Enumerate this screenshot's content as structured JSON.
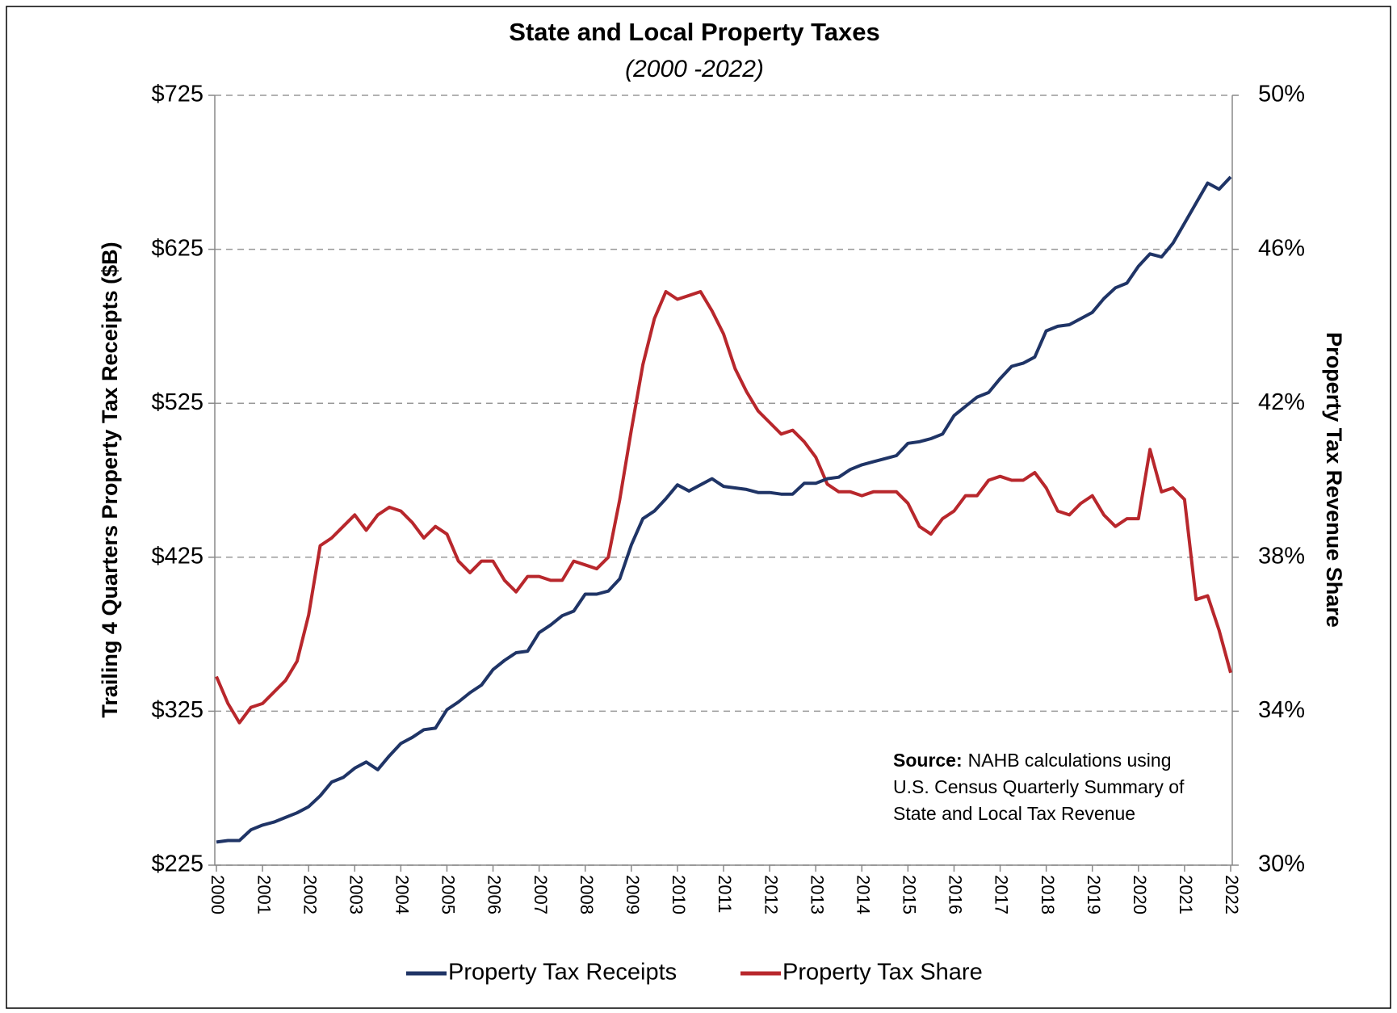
{
  "chart_data": {
    "type": "line",
    "title": "State and Local Property Taxes",
    "subtitle": "(2000 -2022)",
    "y_label": "Trailing 4 Quarters Property Tax Receipts ($B)",
    "y2_label": "Property Tax Revenue Share",
    "categories": [
      "2000",
      null,
      null,
      null,
      "2001",
      null,
      null,
      null,
      "2002",
      null,
      null,
      null,
      "2003",
      null,
      null,
      null,
      "2004",
      null,
      null,
      null,
      "2005",
      null,
      null,
      null,
      "2006",
      null,
      null,
      null,
      "2007",
      null,
      null,
      null,
      "2008",
      null,
      null,
      null,
      "2009",
      null,
      null,
      null,
      "2010",
      null,
      null,
      null,
      "2011",
      null,
      null,
      null,
      "2012",
      null,
      null,
      null,
      "2013",
      null,
      null,
      null,
      "2014",
      null,
      null,
      null,
      "2015",
      null,
      null,
      null,
      "2016",
      null,
      null,
      null,
      "2017",
      null,
      null,
      null,
      "2018",
      null,
      null,
      null,
      "2019",
      null,
      null,
      null,
      "2020",
      null,
      null,
      null,
      "2021",
      null,
      null,
      null,
      "2022"
    ],
    "series": [
      {
        "name": "Property Tax Receipts",
        "color": "#1f3466",
        "axis": "y",
        "values": [
          240,
          241,
          241,
          248,
          251,
          253,
          256,
          259,
          263,
          270,
          279,
          282,
          288,
          292,
          287,
          296,
          304,
          308,
          313,
          314,
          326,
          331,
          337,
          342,
          352,
          358,
          363,
          364,
          376,
          381,
          387,
          390,
          401,
          401,
          403,
          411,
          433,
          450,
          455,
          463,
          472,
          468,
          472,
          476,
          471,
          470,
          469,
          467,
          467,
          466,
          466,
          473,
          473,
          476,
          477,
          482,
          485,
          487,
          489,
          491,
          499,
          500,
          502,
          505,
          517,
          523,
          529,
          532,
          541,
          549,
          551,
          555,
          572,
          575,
          576,
          580,
          584,
          593,
          600,
          603,
          614,
          622,
          620,
          629,
          642,
          655,
          668,
          664,
          672
        ]
      },
      {
        "name": "Property Tax Share",
        "color": "#b8272c",
        "axis": "y2",
        "values": [
          34.9,
          34.2,
          33.7,
          34.1,
          34.2,
          34.5,
          34.8,
          35.3,
          36.5,
          38.3,
          38.5,
          38.8,
          39.1,
          38.7,
          39.1,
          39.3,
          39.2,
          38.9,
          38.5,
          38.8,
          38.6,
          37.9,
          37.6,
          37.9,
          37.9,
          37.4,
          37.1,
          37.5,
          37.5,
          37.4,
          37.4,
          37.9,
          37.8,
          37.7,
          38.0,
          39.5,
          41.3,
          43.0,
          44.2,
          44.9,
          44.7,
          44.8,
          44.9,
          44.4,
          43.8,
          42.9,
          42.3,
          41.8,
          41.5,
          41.2,
          41.3,
          41.0,
          40.6,
          39.9,
          39.7,
          39.7,
          39.6,
          39.7,
          39.7,
          39.7,
          39.4,
          38.8,
          38.6,
          39.0,
          39.2,
          39.6,
          39.6,
          40.0,
          40.1,
          40.0,
          40.0,
          40.2,
          39.8,
          39.2,
          39.1,
          39.4,
          39.6,
          39.1,
          38.8,
          39.0,
          39.0,
          40.8,
          39.7,
          39.8,
          39.5,
          36.9,
          37.0,
          36.1,
          35.0
        ]
      }
    ],
    "ylim": [
      225,
      725
    ],
    "yticks": [
      {
        "value": 225,
        "label": "$225"
      },
      {
        "value": 325,
        "label": "$325"
      },
      {
        "value": 425,
        "label": "$425"
      },
      {
        "value": 525,
        "label": "$525"
      },
      {
        "value": 625,
        "label": "$625"
      },
      {
        "value": 725,
        "label": "$725"
      }
    ],
    "y2lim": [
      30,
      50
    ],
    "y2ticks": [
      {
        "value": 30,
        "label": "30%"
      },
      {
        "value": 34,
        "label": "34%"
      },
      {
        "value": 38,
        "label": "38%"
      },
      {
        "value": 42,
        "label": "42%"
      },
      {
        "value": 46,
        "label": "46%"
      },
      {
        "value": 50,
        "label": "50%"
      }
    ],
    "grid": true,
    "legend": "bottom",
    "annotation": {
      "label": "Source:",
      "lines": [
        "NAHB calculations using",
        "U.S. Census Quarterly Summary of",
        "State and Local Tax Revenue"
      ]
    }
  }
}
